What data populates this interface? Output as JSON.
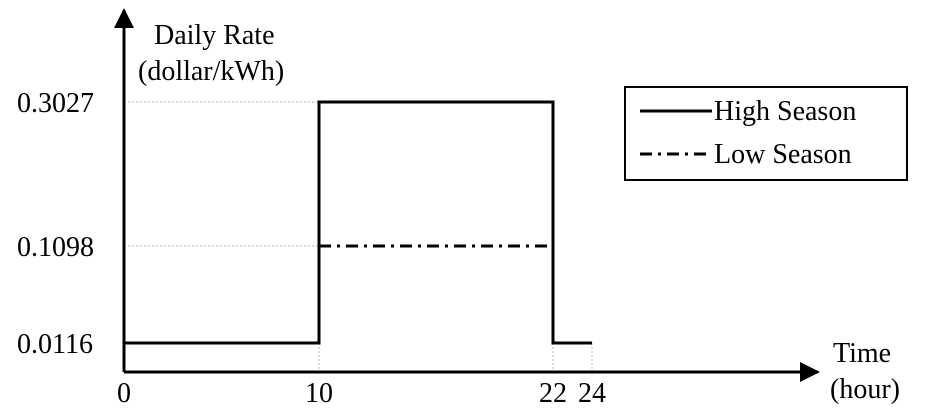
{
  "chart_data": {
    "type": "line",
    "title": "",
    "ylabel": [
      "Daily Rate",
      "(dollar/kWh)"
    ],
    "xlabel": [
      "Time",
      "(hour)"
    ],
    "xlim": [
      0,
      28
    ],
    "ylim": [
      0,
      0.33
    ],
    "x_ticks": [
      "0",
      "10",
      "22",
      "24"
    ],
    "y_ticks": [
      "0.0116",
      "0.1098",
      "0.3027"
    ],
    "grid": "dotted guide lines at breakpoints",
    "legend_position": "top-right",
    "series": [
      {
        "name": "High Season",
        "style": "solid",
        "color": "#000000",
        "points": [
          [
            0,
            0.0116
          ],
          [
            10,
            0.0116
          ],
          [
            10,
            0.3027
          ],
          [
            22,
            0.3027
          ],
          [
            22,
            0.0116
          ],
          [
            24,
            0.0116
          ]
        ]
      },
      {
        "name": "Low Season",
        "style": "dash-dot",
        "color": "#000000",
        "points": [
          [
            10,
            0.1098
          ],
          [
            22,
            0.1098
          ]
        ]
      }
    ]
  }
}
